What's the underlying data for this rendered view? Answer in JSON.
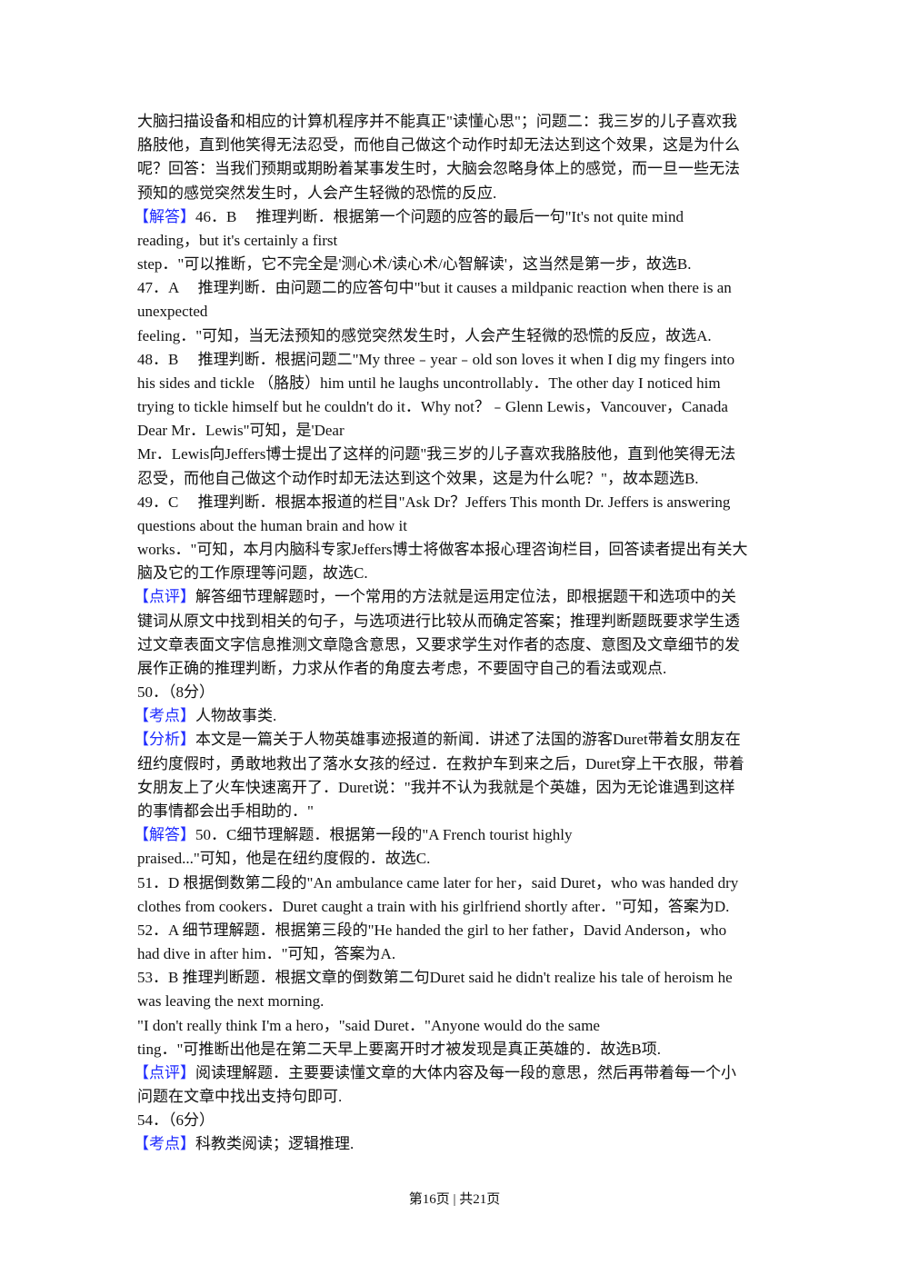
{
  "accent_color": "#1f2bff",
  "lines": [
    {
      "tag": "",
      "text": "大脑扫描设备和相应的计算机程序并不能真正\"读懂心思\"；问题二：我三岁的儿子喜欢我"
    },
    {
      "tag": "",
      "text": "胳肢他，直到他笑得无法忍受，而他自己做这个动作时却无法达到这个效果，这是为什么"
    },
    {
      "tag": "",
      "text": "呢？回答：当我们预期或期盼着某事发生时，大脑会忽略身体上的感觉，而一旦一些无法"
    },
    {
      "tag": "",
      "text": "预知的感觉突然发生时，人会产生轻微的恐慌的反应."
    },
    {
      "tag": "【解答】",
      "text": "46．B　 推理判断．根据第一个问题的应答的最后一句\"It's not quite mind"
    },
    {
      "tag": "",
      "text": "reading，but it's certainly a first"
    },
    {
      "tag": "",
      "text": "step．\"可以推断，它不完全是'测心术/读心术/心智解读'，这当然是第一步，故选B."
    },
    {
      "tag": "",
      "text": "47．A　 推理判断．由问题二的应答句中\"but it causes a mildpanic reaction when there is an"
    },
    {
      "tag": "",
      "text": "unexpected"
    },
    {
      "tag": "",
      "text": "feeling．\"可知，当无法预知的感觉突然发生时，人会产生轻微的恐慌的反应，故选A."
    },
    {
      "tag": "",
      "text": "48．B　 推理判断．根据问题二\"My three﹣year﹣old son loves it when I dig my fingers into"
    },
    {
      "tag": "",
      "text": "his sides and tickle （胳肢）him until he laughs uncontrollably．The other day I noticed him"
    },
    {
      "tag": "",
      "text": "trying to tickle himself but he couldn't do it．Why not？﹣Glenn Lewis，Vancouver，Canada"
    },
    {
      "tag": "",
      "text": "Dear Mr．Lewis\"可知，是'Dear"
    },
    {
      "tag": "",
      "text": "Mr．Lewis向Jeffers博士提出了这样的问题\"我三岁的儿子喜欢我胳肢他，直到他笑得无法"
    },
    {
      "tag": "",
      "text": "忍受，而他自己做这个动作时却无法达到这个效果，这是为什么呢？\"，故本题选B."
    },
    {
      "tag": "",
      "text": "49．C　 推理判断．根据本报道的栏目\"Ask Dr？Jeffers  This month Dr.   Jeffers is answering"
    },
    {
      "tag": "",
      "text": "questions about the human brain and how it"
    },
    {
      "tag": "",
      "text": "works．\"可知，本月内脑科专家Jeffers博士将做客本报心理咨询栏目，回答读者提出有关大"
    },
    {
      "tag": "",
      "text": "脑及它的工作原理等问题，故选C."
    },
    {
      "tag": "【点评】",
      "text": "解答细节理解题时，一个常用的方法就是运用定位法，即根据题干和选项中的关"
    },
    {
      "tag": "",
      "text": "键词从原文中找到相关的句子，与选项进行比较从而确定答案；推理判断题既要求学生透"
    },
    {
      "tag": "",
      "text": "过文章表面文字信息推测文章隐含意思，又要求学生对作者的态度、意图及文章细节的发"
    },
    {
      "tag": "",
      "text": "展作正确的推理判断，力求从作者的角度去考虑，不要固守自己的看法或观点."
    },
    {
      "tag": "",
      "text": "50．（8分）"
    },
    {
      "tag": "【考点】",
      "text": "人物故事类."
    },
    {
      "tag": "【分析】",
      "text": "本文是一篇关于人物英雄事迹报道的新闻．讲述了法国的游客Duret带着女朋友在"
    },
    {
      "tag": "",
      "text": "纽约度假时，勇敢地救出了落水女孩的经过．在救护车到来之后，Duret穿上干衣服，带着"
    },
    {
      "tag": "",
      "text": "女朋友上了火车快速离开了．Duret说：\"我并不认为我就是个英雄，因为无论谁遇到这样"
    },
    {
      "tag": "",
      "text": "的事情都会出手相助的．\""
    },
    {
      "tag": "【解答】",
      "text": "50．C细节理解题．根据第一段的\"A French tourist highly"
    },
    {
      "tag": "",
      "text": "praised...\"可知，他是在纽约度假的．故选C."
    },
    {
      "tag": "",
      "text": "51．D 根据倒数第二段的\"An ambulance came later for her，said Duret，who was handed dry"
    },
    {
      "tag": "",
      "text": "clothes from cookers．Duret caught a train with his girlfriend shortly after．\"可知，答案为D."
    },
    {
      "tag": "",
      "text": "52．A 细节理解题．根据第三段的\"He handed the girl to her father，David Anderson，who"
    },
    {
      "tag": "",
      "text": "had dive in after him．\"可知，答案为A."
    },
    {
      "tag": "",
      "text": "53．B 推理判断题．根据文章的倒数第二句Duret said he didn't realize his tale of heroism he"
    },
    {
      "tag": "",
      "text": "was leaving the next morning."
    },
    {
      "tag": "",
      "text": "\"I don't really think I'm a hero，\"said Duret．\"Anyone would do the same"
    },
    {
      "tag": "",
      "text": "ting．\"可推断出他是在第二天早上要离开时才被发现是真正英雄的．故选B项."
    },
    {
      "tag": "【点评】",
      "text": "阅读理解题．主要要读懂文章的大体内容及每一段的意思，然后再带着每一个小"
    },
    {
      "tag": "",
      "text": "问题在文章中找出支持句即可."
    },
    {
      "tag": "",
      "text": "54．（6分）"
    },
    {
      "tag": "【考点】",
      "text": "科教类阅读；逻辑推理."
    }
  ],
  "footer": "第16页 | 共21页"
}
